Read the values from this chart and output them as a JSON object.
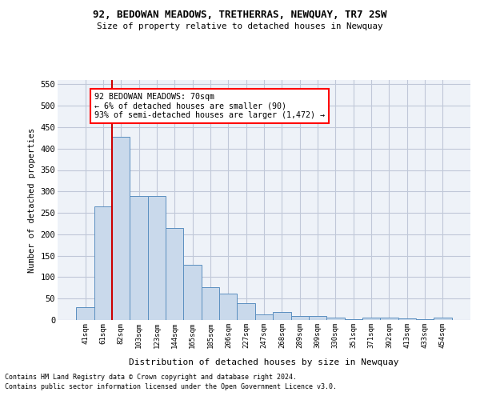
{
  "title": "92, BEDOWAN MEADOWS, TRETHERRAS, NEWQUAY, TR7 2SW",
  "subtitle": "Size of property relative to detached houses in Newquay",
  "xlabel": "Distribution of detached houses by size in Newquay",
  "ylabel": "Number of detached properties",
  "footnote1": "Contains HM Land Registry data © Crown copyright and database right 2024.",
  "footnote2": "Contains public sector information licensed under the Open Government Licence v3.0.",
  "annotation_line1": "92 BEDOWAN MEADOWS: 70sqm",
  "annotation_line2": "← 6% of detached houses are smaller (90)",
  "annotation_line3": "93% of semi-detached houses are larger (1,472) →",
  "bar_labels": [
    "41sqm",
    "61sqm",
    "82sqm",
    "103sqm",
    "123sqm",
    "144sqm",
    "165sqm",
    "185sqm",
    "206sqm",
    "227sqm",
    "247sqm",
    "268sqm",
    "289sqm",
    "309sqm",
    "330sqm",
    "351sqm",
    "371sqm",
    "392sqm",
    "413sqm",
    "433sqm",
    "454sqm"
  ],
  "bar_values": [
    30,
    265,
    428,
    290,
    290,
    215,
    128,
    77,
    62,
    40,
    14,
    18,
    10,
    10,
    5,
    1,
    5,
    6,
    4,
    2,
    5
  ],
  "bar_color": "#c9d9eb",
  "bar_edge_color": "#5b8fc0",
  "grid_color": "#c0c8d8",
  "background_color": "#eef2f8",
  "marker_color": "#cc0000",
  "ylim": [
    0,
    560
  ],
  "yticks": [
    0,
    50,
    100,
    150,
    200,
    250,
    300,
    350,
    400,
    450,
    500,
    550
  ]
}
